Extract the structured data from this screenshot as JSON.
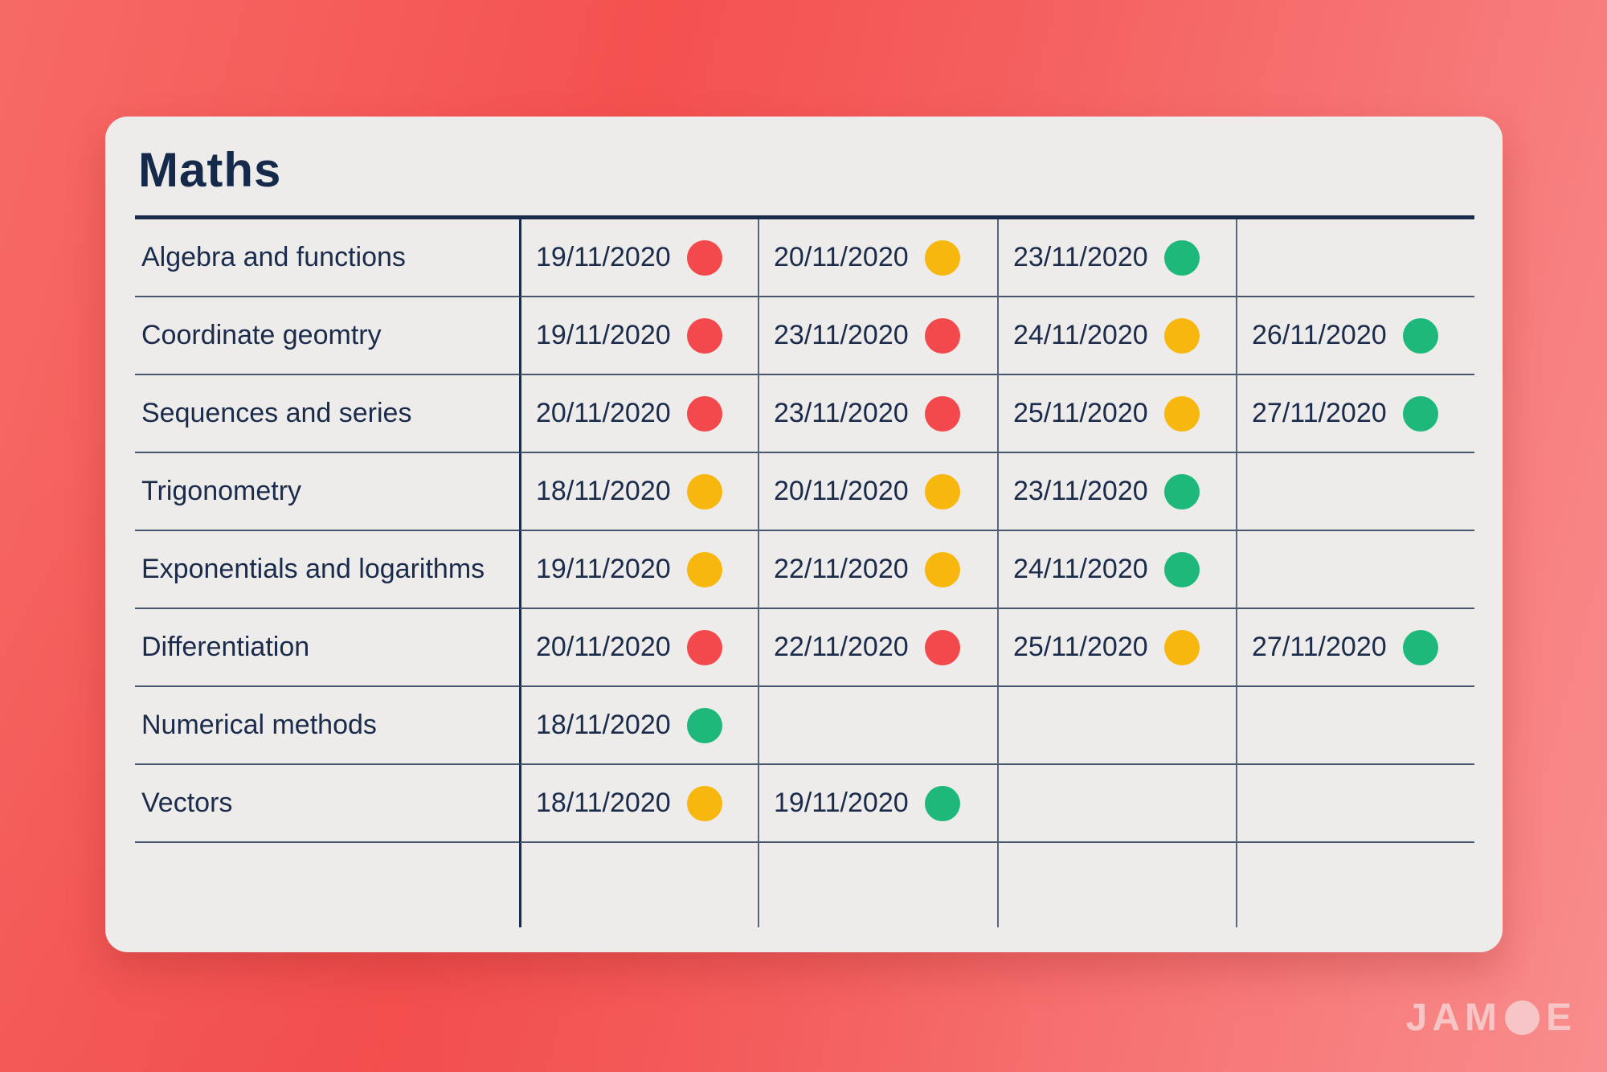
{
  "card": {
    "title": "Maths"
  },
  "colors": {
    "red": "#f4494c",
    "yellow": "#f8b70f",
    "green": "#1eb97a",
    "navy": "#1b2b4b",
    "card_bg": "#edecea",
    "background_coral": "#f4514f",
    "logo_pink": "#f8c5c6"
  },
  "logo": {
    "pre": "JAM",
    "post": "E",
    "name": "JAMOE"
  },
  "chart_data": {
    "type": "table",
    "title": "Maths",
    "legend_note": "status dots: red / yellow / green",
    "rows": [
      {
        "topic": "Algebra and functions",
        "attempts": [
          {
            "date": "19/11/2020",
            "status": "red"
          },
          {
            "date": "20/11/2020",
            "status": "yellow"
          },
          {
            "date": "23/11/2020",
            "status": "green"
          }
        ]
      },
      {
        "topic": "Coordinate geomtry",
        "attempts": [
          {
            "date": "19/11/2020",
            "status": "red"
          },
          {
            "date": "23/11/2020",
            "status": "red"
          },
          {
            "date": "24/11/2020",
            "status": "yellow"
          },
          {
            "date": "26/11/2020",
            "status": "green"
          }
        ]
      },
      {
        "topic": "Sequences and series",
        "attempts": [
          {
            "date": "20/11/2020",
            "status": "red"
          },
          {
            "date": "23/11/2020",
            "status": "red"
          },
          {
            "date": "25/11/2020",
            "status": "yellow"
          },
          {
            "date": "27/11/2020",
            "status": "green"
          }
        ]
      },
      {
        "topic": "Trigonometry",
        "attempts": [
          {
            "date": "18/11/2020",
            "status": "yellow"
          },
          {
            "date": "20/11/2020",
            "status": "yellow"
          },
          {
            "date": "23/11/2020",
            "status": "green"
          }
        ]
      },
      {
        "topic": "Exponentials and logarithms",
        "attempts": [
          {
            "date": "19/11/2020",
            "status": "yellow"
          },
          {
            "date": "22/11/2020",
            "status": "yellow"
          },
          {
            "date": "24/11/2020",
            "status": "green"
          }
        ]
      },
      {
        "topic": "Differentiation",
        "attempts": [
          {
            "date": "20/11/2020",
            "status": "red"
          },
          {
            "date": "22/11/2020",
            "status": "red"
          },
          {
            "date": "25/11/2020",
            "status": "yellow"
          },
          {
            "date": "27/11/2020",
            "status": "green"
          }
        ]
      },
      {
        "topic": "Numerical methods",
        "attempts": [
          {
            "date": "18/11/2020",
            "status": "green"
          }
        ]
      },
      {
        "topic": "Vectors",
        "attempts": [
          {
            "date": "18/11/2020",
            "status": "yellow"
          },
          {
            "date": "19/11/2020",
            "status": "green"
          }
        ]
      }
    ]
  }
}
